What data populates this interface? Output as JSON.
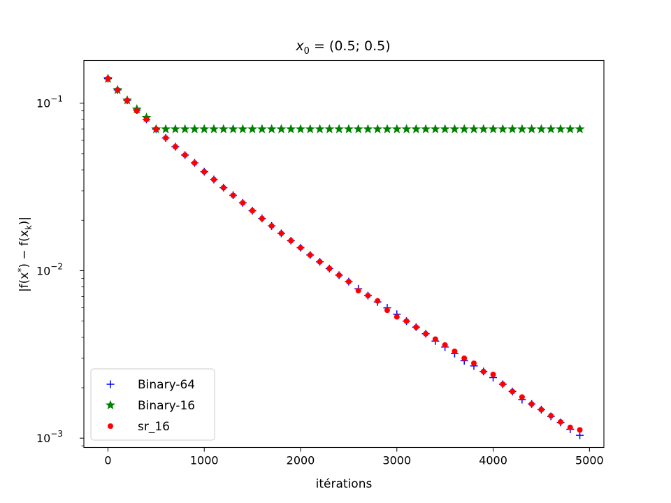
{
  "chart_data": {
    "type": "scatter",
    "title": {
      "text": "x",
      "sub": "0",
      "rest": " = (0.5; 0.5)"
    },
    "xlabel": "itérations",
    "ylabel": {
      "prefix": "|f(x",
      "sup": "*",
      "middle": ") − f(x",
      "sub": "k",
      "suffix": ")|"
    },
    "yscale": "log",
    "xlim": [
      -250,
      5150
    ],
    "ylim": [
      0.00088,
      0.18
    ],
    "xticks": [
      {
        "value": 0,
        "label": "0"
      },
      {
        "value": 1000,
        "label": "1000"
      },
      {
        "value": 2000,
        "label": "2000"
      },
      {
        "value": 3000,
        "label": "3000"
      },
      {
        "value": 4000,
        "label": "4000"
      },
      {
        "value": 5000,
        "label": "5000"
      }
    ],
    "yticks": [
      {
        "value": 0.1,
        "base": "10",
        "exp": "−1"
      },
      {
        "value": 0.01,
        "base": "10",
        "exp": "−2"
      },
      {
        "value": 0.001,
        "base": "10",
        "exp": "−3"
      }
    ],
    "legend_position": "lower-left",
    "series": [
      {
        "name": "Binary-64",
        "marker": "plus",
        "color": "#0000ff",
        "x": [
          0,
          100,
          200,
          300,
          400,
          500,
          600,
          700,
          800,
          900,
          1000,
          1100,
          1200,
          1300,
          1400,
          1500,
          1600,
          1700,
          1800,
          1900,
          2000,
          2100,
          2200,
          2300,
          2400,
          2500,
          2600,
          2700,
          2800,
          2900,
          3000,
          3100,
          3200,
          3300,
          3400,
          3500,
          3600,
          3700,
          3800,
          3900,
          4000,
          4100,
          4200,
          4300,
          4400,
          4500,
          4600,
          4700,
          4800,
          4900
        ],
        "y": [
          0.14,
          0.12,
          0.104,
          0.091,
          0.08,
          0.07,
          0.062,
          0.055,
          0.049,
          0.044,
          0.039,
          0.035,
          0.0313,
          0.0282,
          0.0254,
          0.0228,
          0.0205,
          0.0185,
          0.0167,
          0.0151,
          0.0137,
          0.0124,
          0.0113,
          0.0103,
          0.0094,
          0.0086,
          0.0078,
          0.0071,
          0.0065,
          0.006,
          0.0055,
          0.005,
          0.0046,
          0.0042,
          0.0038,
          0.0035,
          0.0032,
          0.0029,
          0.0027,
          0.0025,
          0.0023,
          0.0021,
          0.0019,
          0.0017,
          0.0016,
          0.00148,
          0.00135,
          0.00124,
          0.00113,
          0.00104
        ]
      },
      {
        "name": "Binary-16",
        "marker": "star",
        "color": "#008000",
        "x": [
          0,
          100,
          200,
          300,
          400,
          500,
          600,
          700,
          800,
          900,
          1000,
          1100,
          1200,
          1300,
          1400,
          1500,
          1600,
          1700,
          1800,
          1900,
          2000,
          2100,
          2200,
          2300,
          2400,
          2500,
          2600,
          2700,
          2800,
          2900,
          3000,
          3100,
          3200,
          3300,
          3400,
          3500,
          3600,
          3700,
          3800,
          3900,
          4000,
          4100,
          4200,
          4300,
          4400,
          4500,
          4600,
          4700,
          4800,
          4900
        ],
        "y": [
          0.14,
          0.12,
          0.104,
          0.092,
          0.082,
          0.07,
          0.07,
          0.07,
          0.07,
          0.07,
          0.07,
          0.07,
          0.07,
          0.07,
          0.07,
          0.07,
          0.07,
          0.07,
          0.07,
          0.07,
          0.07,
          0.07,
          0.07,
          0.07,
          0.07,
          0.07,
          0.07,
          0.07,
          0.07,
          0.07,
          0.07,
          0.07,
          0.07,
          0.07,
          0.07,
          0.07,
          0.07,
          0.07,
          0.07,
          0.07,
          0.07,
          0.07,
          0.07,
          0.07,
          0.07,
          0.07,
          0.07,
          0.07,
          0.07,
          0.07
        ]
      },
      {
        "name": "sr_16",
        "marker": "circle",
        "color": "#ff0000",
        "x": [
          0,
          100,
          200,
          300,
          400,
          500,
          600,
          700,
          800,
          900,
          1000,
          1100,
          1200,
          1300,
          1400,
          1500,
          1600,
          1700,
          1800,
          1900,
          2000,
          2100,
          2200,
          2300,
          2400,
          2500,
          2600,
          2700,
          2800,
          2900,
          3000,
          3100,
          3200,
          3300,
          3400,
          3500,
          3600,
          3700,
          3800,
          3900,
          4000,
          4100,
          4200,
          4300,
          4400,
          4500,
          4600,
          4700,
          4800,
          4900
        ],
        "y": [
          0.14,
          0.12,
          0.104,
          0.09,
          0.08,
          0.07,
          0.062,
          0.055,
          0.049,
          0.044,
          0.039,
          0.035,
          0.0313,
          0.0282,
          0.0254,
          0.0228,
          0.0205,
          0.0185,
          0.0167,
          0.0151,
          0.0137,
          0.0124,
          0.0113,
          0.0103,
          0.0094,
          0.0086,
          0.0076,
          0.0071,
          0.0066,
          0.0058,
          0.0053,
          0.005,
          0.0046,
          0.0042,
          0.0039,
          0.0036,
          0.0033,
          0.003,
          0.0028,
          0.0025,
          0.0024,
          0.0021,
          0.0019,
          0.00176,
          0.0016,
          0.00148,
          0.00136,
          0.00125,
          0.00116,
          0.00112
        ]
      }
    ]
  }
}
